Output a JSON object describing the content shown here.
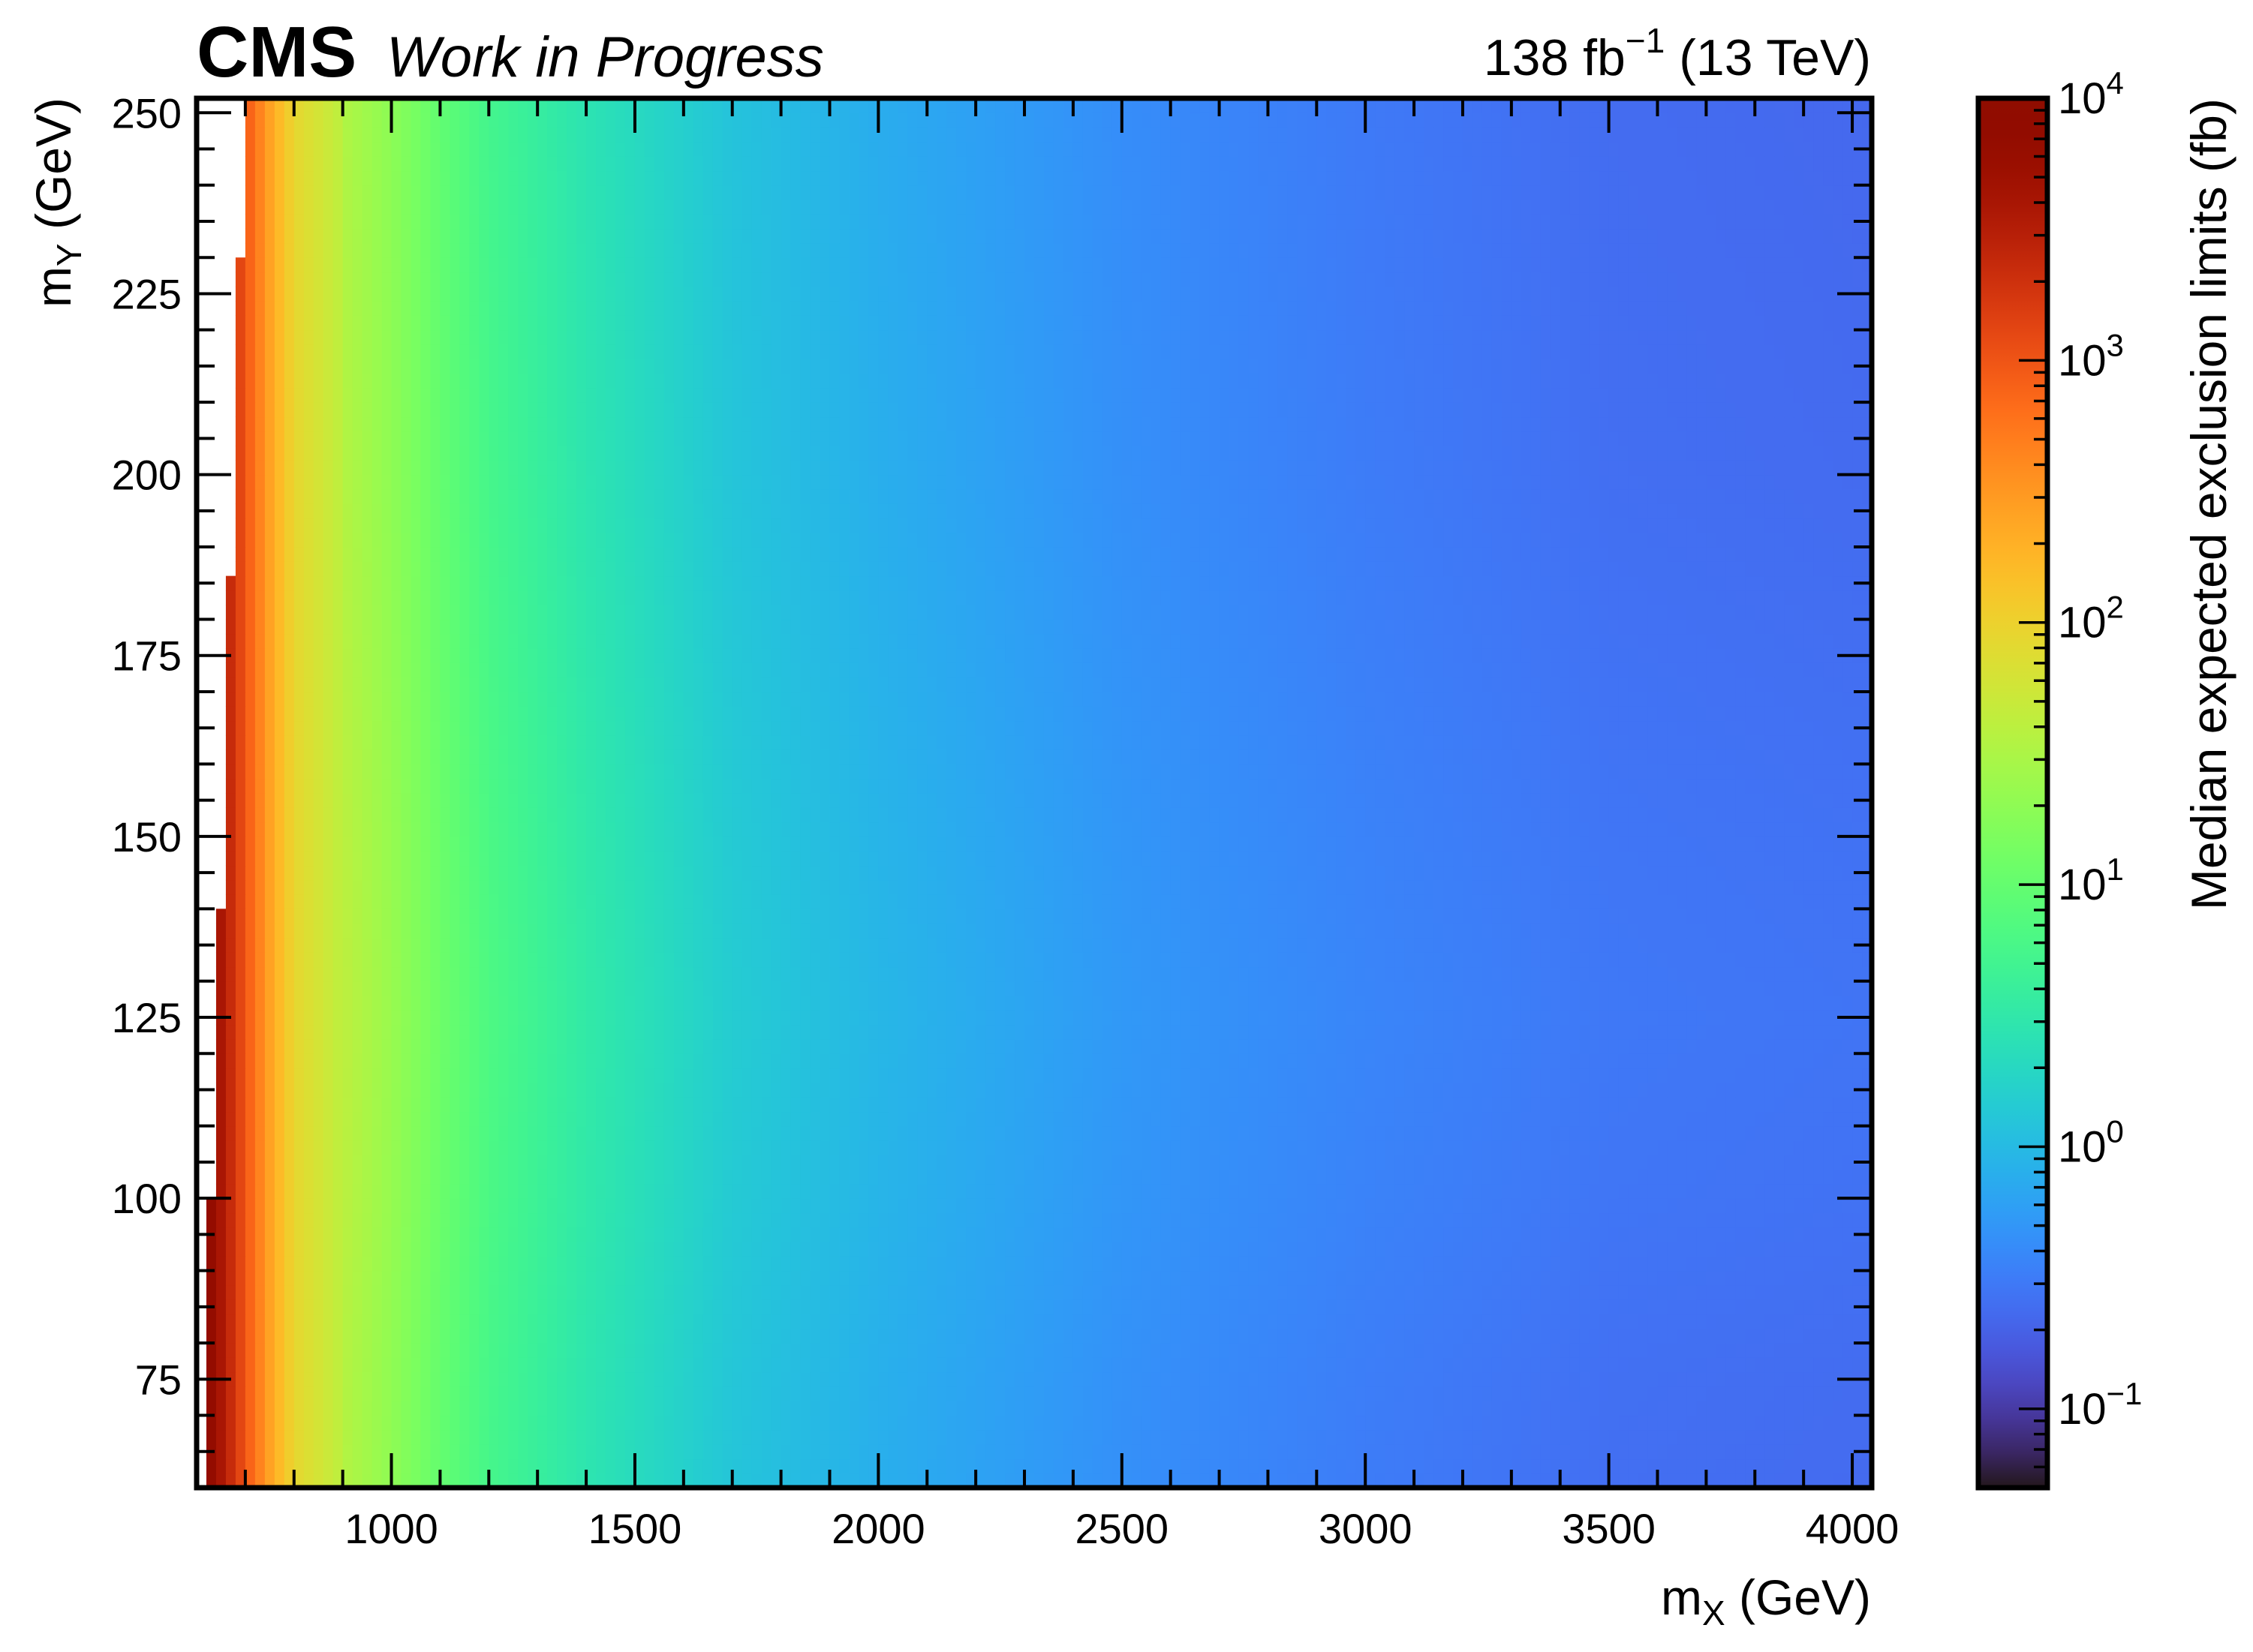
{
  "header": {
    "experiment": "CMS",
    "status": "Work in Progress",
    "lumi_value": "138 fb",
    "lumi_exp": "−1",
    "energy": "(13 TeV)"
  },
  "chart_data": {
    "type": "heatmap",
    "title": "",
    "xlabel_main": "m",
    "xlabel_sub": "X",
    "xlabel_unit": "(GeV)",
    "ylabel_main": "m",
    "ylabel_sub": "Y",
    "ylabel_unit": "(GeV)",
    "xlim": [
      600,
      4040
    ],
    "ylim": [
      60,
      252
    ],
    "x_ticks": [
      1000,
      1500,
      2000,
      2500,
      3000,
      3500,
      4000
    ],
    "y_ticks": [
      75,
      100,
      125,
      150,
      175,
      200,
      225,
      250
    ],
    "colorbar": {
      "label": "Median expected exclusion limits (fb)",
      "scale": "log",
      "range": [
        0.05,
        10000
      ],
      "tick_base": "10",
      "tick_exponents": [
        "−1",
        "0",
        "1",
        "2",
        "3",
        "4"
      ],
      "colormap": "turbo"
    },
    "x_bin_width": 20,
    "y_bin_width": 2,
    "edge_left_x": [
      [
        60,
        620
      ],
      [
        100,
        630
      ],
      [
        120,
        640
      ],
      [
        140,
        650
      ],
      [
        160,
        660
      ],
      [
        185,
        670
      ],
      [
        205,
        680
      ],
      [
        230,
        690
      ],
      [
        245,
        700
      ],
      [
        252,
        700
      ]
    ],
    "profile_x": [
      620,
      700,
      760,
      800,
      900,
      1000,
      1100,
      1200,
      1400,
      1700,
      2000,
      2500,
      3000,
      3500,
      4040
    ],
    "profile_log10_limit": [
      3.95,
      3.0,
      2.3,
      1.95,
      1.6,
      1.35,
      1.05,
      0.8,
      0.5,
      0.15,
      -0.05,
      -0.3,
      -0.45,
      -0.55,
      -0.58
    ],
    "y_modulation_my": [
      60,
      75,
      100,
      125,
      150,
      200,
      252
    ],
    "y_modulation_log10": [
      -0.05,
      -0.04,
      0.0,
      0.02,
      0.0,
      -0.05,
      -0.07
    ]
  }
}
